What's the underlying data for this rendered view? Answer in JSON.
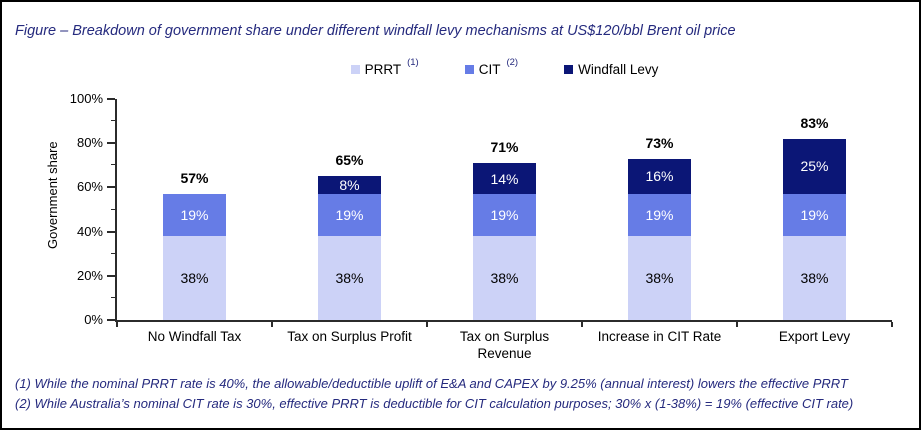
{
  "figure": {
    "title": "Figure – Breakdown of government share under different windfall levy mechanisms at US$120/bbl Brent oil price",
    "footnotes": [
      "(1) While the nominal PRRT rate is 40%, the allowable/deductible uplift of E&A and CAPEX by 9.25% (annual interest) lowers the effective PRRT",
      "(2) While Australia’s nominal CIT rate is 30%, effective PRRT is deductible for CIT calculation purposes; 30% x (1-38%) = 19% (effective CIT rate)"
    ]
  },
  "legend": {
    "items": [
      {
        "label": "PRRT",
        "superscript": "(1)",
        "color": "#ccd2f7"
      },
      {
        "label": "CIT",
        "superscript": "(2)",
        "color": "#667ce6"
      },
      {
        "label": "Windfall Levy",
        "superscript": "",
        "color": "#0b1676"
      }
    ]
  },
  "chart_data": {
    "type": "bar",
    "stacked": true,
    "title": "",
    "xlabel": "",
    "ylabel": "Government share",
    "ylim": [
      0,
      100
    ],
    "ytick_labels": [
      "0%",
      "20%",
      "40%",
      "60%",
      "80%",
      "100%"
    ],
    "ytick_step_major": 20,
    "ytick_step_minor": 10,
    "grid": false,
    "legend_position": "top-center",
    "categories": [
      "No Windfall Tax",
      "Tax on Surplus Profit",
      "Tax on Surplus\nRevenue",
      "Increase in CIT Rate",
      "Export Levy"
    ],
    "series": [
      {
        "name": "PRRT",
        "color": "#ccd2f7",
        "label_color": "#000000",
        "values": [
          38,
          38,
          38,
          38,
          38
        ]
      },
      {
        "name": "CIT",
        "color": "#667ce6",
        "label_color": "#ffffff",
        "values": [
          19,
          19,
          19,
          19,
          19
        ]
      },
      {
        "name": "Windfall Levy",
        "color": "#0b1676",
        "label_color": "#ffffff",
        "values": [
          0,
          8,
          14,
          16,
          25
        ]
      }
    ],
    "total_labels": [
      "57%",
      "65%",
      "71%",
      "73%",
      "83%"
    ],
    "axis_color": "#2b2b2b"
  }
}
